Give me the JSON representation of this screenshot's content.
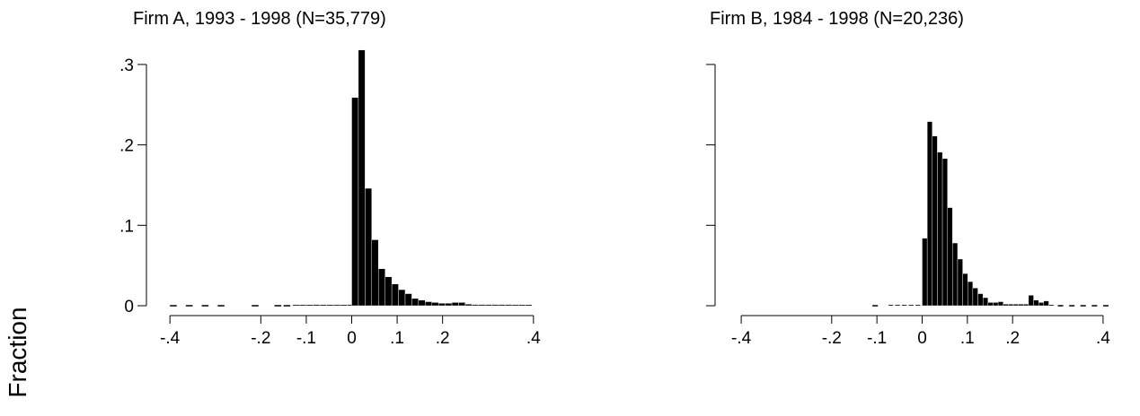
{
  "figure": {
    "ylabel": "Fraction"
  },
  "chart_data": [
    {
      "type": "bar",
      "title": "Firm A, 1993 - 1998 (N=35,779)",
      "xlabel": "",
      "ylabel": "Fraction",
      "xlim": [
        -0.43,
        0.43
      ],
      "ylim": [
        0,
        0.33
      ],
      "x_ticks": [
        {
          "value": -0.4,
          "label": "-.4"
        },
        {
          "value": -0.2,
          "label": "-.2"
        },
        {
          "value": -0.1,
          "label": "-.1"
        },
        {
          "value": 0,
          "label": "0"
        },
        {
          "value": 0.1,
          "label": ".1"
        },
        {
          "value": 0.2,
          "label": ".2"
        },
        {
          "value": 0.4,
          "label": ".4"
        }
      ],
      "y_ticks": [
        {
          "value": 0,
          "label": "0"
        },
        {
          "value": 0.1,
          "label": ".1"
        },
        {
          "value": 0.2,
          "label": ".2"
        },
        {
          "value": 0.3,
          "label": ".3"
        }
      ],
      "grid": false,
      "bin_width": 0.0147,
      "bins": [
        {
          "x0": -0.13,
          "value": 0.0012
        },
        {
          "x0": -0.115,
          "value": 0.001
        },
        {
          "x0": -0.1,
          "value": 0.0012
        },
        {
          "x0": -0.085,
          "value": 0.0015
        },
        {
          "x0": -0.07,
          "value": 0.0012
        },
        {
          "x0": -0.055,
          "value": 0.0012
        },
        {
          "x0": -0.04,
          "value": 0.0014
        },
        {
          "x0": -0.025,
          "value": 0.0012
        },
        {
          "x0": -0.01,
          "value": 0.0015
        },
        {
          "x0": 0.0,
          "value": 0.259
        },
        {
          "x0": 0.0147,
          "value": 0.318
        },
        {
          "x0": 0.0294,
          "value": 0.146
        },
        {
          "x0": 0.0441,
          "value": 0.082
        },
        {
          "x0": 0.0588,
          "value": 0.046
        },
        {
          "x0": 0.0735,
          "value": 0.036
        },
        {
          "x0": 0.0882,
          "value": 0.027
        },
        {
          "x0": 0.1029,
          "value": 0.02
        },
        {
          "x0": 0.1176,
          "value": 0.015
        },
        {
          "x0": 0.1323,
          "value": 0.009
        },
        {
          "x0": 0.147,
          "value": 0.007
        },
        {
          "x0": 0.1617,
          "value": 0.005
        },
        {
          "x0": 0.1764,
          "value": 0.004
        },
        {
          "x0": 0.1911,
          "value": 0.003
        },
        {
          "x0": 0.2058,
          "value": 0.003
        },
        {
          "x0": 0.2205,
          "value": 0.004
        },
        {
          "x0": 0.2352,
          "value": 0.004
        },
        {
          "x0": 0.2499,
          "value": 0.002
        },
        {
          "x0": 0.2646,
          "value": 0.0015
        },
        {
          "x0": 0.2793,
          "value": 0.0015
        },
        {
          "x0": 0.294,
          "value": 0.0015
        },
        {
          "x0": 0.3087,
          "value": 0.0015
        },
        {
          "x0": 0.3234,
          "value": 0.0015
        },
        {
          "x0": 0.3381,
          "value": 0.0015
        },
        {
          "x0": 0.3528,
          "value": 0.0012
        },
        {
          "x0": 0.3675,
          "value": 0.0012
        },
        {
          "x0": 0.3822,
          "value": 0.0012
        }
      ],
      "tail_markers": [
        {
          "x0": -0.4,
          "x1": -0.385
        },
        {
          "x0": -0.365,
          "x1": -0.35
        },
        {
          "x0": -0.33,
          "x1": -0.315
        },
        {
          "x0": -0.295,
          "x1": -0.28
        },
        {
          "x0": -0.22,
          "x1": -0.205
        },
        {
          "x0": -0.17,
          "x1": -0.155
        },
        {
          "x0": -0.15,
          "x1": -0.135
        }
      ]
    },
    {
      "type": "bar",
      "title": "Firm B, 1984 - 1998 (N=20,236)",
      "xlabel": "",
      "ylabel": "Fraction",
      "xlim": [
        -0.43,
        0.43
      ],
      "ylim": [
        0,
        0.33
      ],
      "x_ticks": [
        {
          "value": -0.4,
          "label": "-.4"
        },
        {
          "value": -0.2,
          "label": "-.2"
        },
        {
          "value": -0.1,
          "label": "-.1"
        },
        {
          "value": 0,
          "label": "0"
        },
        {
          "value": 0.1,
          "label": ".1"
        },
        {
          "value": 0.2,
          "label": ".2"
        },
        {
          "value": 0.4,
          "label": ".4"
        }
      ],
      "y_ticks": [
        {
          "value": 0,
          "label": ""
        },
        {
          "value": 0.1,
          "label": ""
        },
        {
          "value": 0.2,
          "label": ""
        },
        {
          "value": 0.3,
          "label": ""
        }
      ],
      "grid": false,
      "bin_width": 0.0112,
      "bins": [
        {
          "x0": -0.075,
          "value": 0.001
        },
        {
          "x0": -0.06,
          "value": 0.001
        },
        {
          "x0": -0.045,
          "value": 0.001
        },
        {
          "x0": -0.03,
          "value": 0.001
        },
        {
          "x0": -0.015,
          "value": 0.001
        },
        {
          "x0": 0.0,
          "value": 0.084
        },
        {
          "x0": 0.0112,
          "value": 0.229
        },
        {
          "x0": 0.0224,
          "value": 0.211
        },
        {
          "x0": 0.0336,
          "value": 0.191
        },
        {
          "x0": 0.0448,
          "value": 0.183
        },
        {
          "x0": 0.056,
          "value": 0.122
        },
        {
          "x0": 0.0672,
          "value": 0.078
        },
        {
          "x0": 0.0784,
          "value": 0.058
        },
        {
          "x0": 0.0896,
          "value": 0.04
        },
        {
          "x0": 0.1008,
          "value": 0.03
        },
        {
          "x0": 0.112,
          "value": 0.022
        },
        {
          "x0": 0.1232,
          "value": 0.015
        },
        {
          "x0": 0.1344,
          "value": 0.01
        },
        {
          "x0": 0.1456,
          "value": 0.004
        },
        {
          "x0": 0.1568,
          "value": 0.004
        },
        {
          "x0": 0.168,
          "value": 0.005
        },
        {
          "x0": 0.1792,
          "value": 0.002
        },
        {
          "x0": 0.1904,
          "value": 0.002
        },
        {
          "x0": 0.2016,
          "value": 0.002
        },
        {
          "x0": 0.2128,
          "value": 0.002
        },
        {
          "x0": 0.224,
          "value": 0.002
        },
        {
          "x0": 0.2352,
          "value": 0.013
        },
        {
          "x0": 0.2464,
          "value": 0.007
        },
        {
          "x0": 0.2576,
          "value": 0.004
        },
        {
          "x0": 0.2688,
          "value": 0.006
        },
        {
          "x0": 0.28,
          "value": 0.001
        }
      ],
      "tail_markers": [
        {
          "x0": -0.11,
          "x1": -0.098
        },
        {
          "x0": 0.3,
          "x1": 0.312
        },
        {
          "x0": 0.325,
          "x1": 0.337
        },
        {
          "x0": 0.35,
          "x1": 0.362
        },
        {
          "x0": 0.375,
          "x1": 0.387
        },
        {
          "x0": 0.4,
          "x1": 0.412
        }
      ]
    }
  ]
}
